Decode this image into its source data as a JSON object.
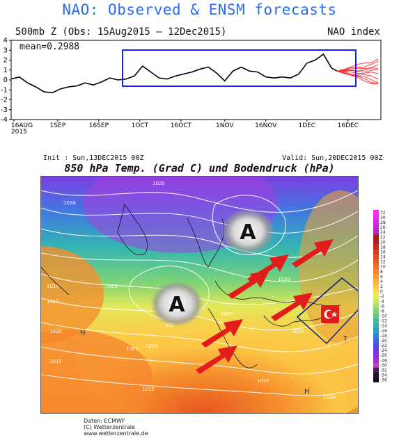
{
  "nao": {
    "title": "NAO: Observed & ENSM forecasts",
    "subtitle": "500mb Z (Obs: 15Aug2015 – 12Dec2015)",
    "index_label": "NAO index",
    "mean_label": "mean=0.2988"
  },
  "map": {
    "init_label": "Init : Sun,13DEC2015 00Z",
    "valid_label": "Valid: Sun,20DEC2015 00Z",
    "title": "850 hPa Temp. (Grad C) und Bodendruck (hPa)",
    "high_symbol_label": "A",
    "region_letters": [
      "H",
      "H",
      "T"
    ],
    "colorbar_ticks": [
      "32",
      "30",
      "28",
      "26",
      "24",
      "22",
      "20",
      "18",
      "16",
      "14",
      "12",
      "10",
      "8",
      "6",
      "4",
      "2",
      "0",
      "-2",
      "-4",
      "-6",
      "-8",
      "-10",
      "-12",
      "-14",
      "-16",
      "-18",
      "-20",
      "-22",
      "-24",
      "-26",
      "-28",
      "-30",
      "-32",
      "-34",
      "-36"
    ],
    "colorbar_colors": [
      "#ff2af0",
      "#e82af0",
      "#d52ae0",
      "#c22ad0",
      "#b02ac0",
      "#9a1f1f",
      "#b21f1f",
      "#c52a1f",
      "#d7381f",
      "#e24a1f",
      "#ea5d22",
      "#f07028",
      "#f5842e",
      "#f99a34",
      "#fbb03c",
      "#fcc545",
      "#fcd84e",
      "#eceb52",
      "#cde85a",
      "#a6df66",
      "#7fd475",
      "#5ec888",
      "#44bc9c",
      "#38aeb2",
      "#2f9bc6",
      "#2f82d6",
      "#3a66e0",
      "#4d4ce6",
      "#6a38e6",
      "#8a2ae0",
      "#a52ad2",
      "#b83fc6",
      "#4a1a52",
      "#2a0e30",
      "#150818"
    ],
    "contour_labels": [
      "1025",
      "1020",
      "1015",
      "1010",
      "1005",
      "1000",
      "995",
      "1030",
      "1035",
      "1020",
      "1010",
      "1015",
      "1005",
      "1025",
      "1030",
      "1015"
    ],
    "credits": [
      "Daten: ECMWF",
      "(C) Wetterzentrale",
      "www.wetterzentrale.de"
    ]
  },
  "chart_data": {
    "type": "line",
    "title": "NAO: Observed & ENSM forecasts",
    "subtitle": "500mb Z (Obs: 15Aug2015 – 12Dec2015)",
    "xlabel": "",
    "ylabel": "",
    "ylim": [
      -4,
      4
    ],
    "yticks": [
      -4,
      -3,
      -2,
      -1,
      0,
      1,
      2,
      3,
      4
    ],
    "xtick_labels": [
      "16AUG\n2015",
      "1SEP",
      "16SEP",
      "1OCT",
      "16OCT",
      "1NOV",
      "16NOV",
      "1DEC",
      "16DEC"
    ],
    "xtick_dates": [
      "2015-08-16",
      "2015-09-01",
      "2015-09-16",
      "2015-10-01",
      "2015-10-16",
      "2015-11-01",
      "2015-11-16",
      "2015-12-01",
      "2015-12-16"
    ],
    "xrange": [
      "2015-08-15",
      "2015-12-28"
    ],
    "grid": true,
    "mean": 0.2988,
    "observed": {
      "name": "Observed",
      "points": [
        [
          "2015-08-15",
          0.1
        ],
        [
          "2015-08-18",
          0.3
        ],
        [
          "2015-08-21",
          -0.3
        ],
        [
          "2015-08-24",
          -0.7
        ],
        [
          "2015-08-27",
          -1.2
        ],
        [
          "2015-08-30",
          -1.3
        ],
        [
          "2015-09-02",
          -0.9
        ],
        [
          "2015-09-05",
          -0.7
        ],
        [
          "2015-09-08",
          -0.6
        ],
        [
          "2015-09-11",
          -0.3
        ],
        [
          "2015-09-14",
          -0.5
        ],
        [
          "2015-09-17",
          -0.2
        ],
        [
          "2015-09-20",
          0.2
        ],
        [
          "2015-09-23",
          0.0
        ],
        [
          "2015-09-26",
          0.1
        ],
        [
          "2015-09-29",
          0.4
        ],
        [
          "2015-10-02",
          1.4
        ],
        [
          "2015-10-05",
          0.8
        ],
        [
          "2015-10-08",
          0.2
        ],
        [
          "2015-10-11",
          0.1
        ],
        [
          "2015-10-14",
          0.4
        ],
        [
          "2015-10-17",
          0.6
        ],
        [
          "2015-10-20",
          0.8
        ],
        [
          "2015-10-23",
          1.1
        ],
        [
          "2015-10-26",
          1.3
        ],
        [
          "2015-10-29",
          0.7
        ],
        [
          "2015-11-01",
          -0.1
        ],
        [
          "2015-11-04",
          0.9
        ],
        [
          "2015-11-07",
          1.3
        ],
        [
          "2015-11-10",
          0.9
        ],
        [
          "2015-11-13",
          0.8
        ],
        [
          "2015-11-16",
          0.3
        ],
        [
          "2015-11-19",
          0.2
        ],
        [
          "2015-11-22",
          0.3
        ],
        [
          "2015-11-25",
          0.2
        ],
        [
          "2015-11-28",
          0.6
        ],
        [
          "2015-12-01",
          1.7
        ],
        [
          "2015-12-04",
          2.0
        ],
        [
          "2015-12-07",
          2.6
        ],
        [
          "2015-12-10",
          1.2
        ],
        [
          "2015-12-12",
          0.9
        ]
      ]
    },
    "ensemble": {
      "name": "ENSM forecasts",
      "start": [
        "2015-12-12",
        0.9
      ],
      "end_date": "2015-12-27",
      "end_values": [
        2.1,
        1.4,
        0.9,
        0.6,
        0.2,
        -0.1,
        -0.3,
        -0.5,
        1.7,
        1.1
      ]
    }
  }
}
